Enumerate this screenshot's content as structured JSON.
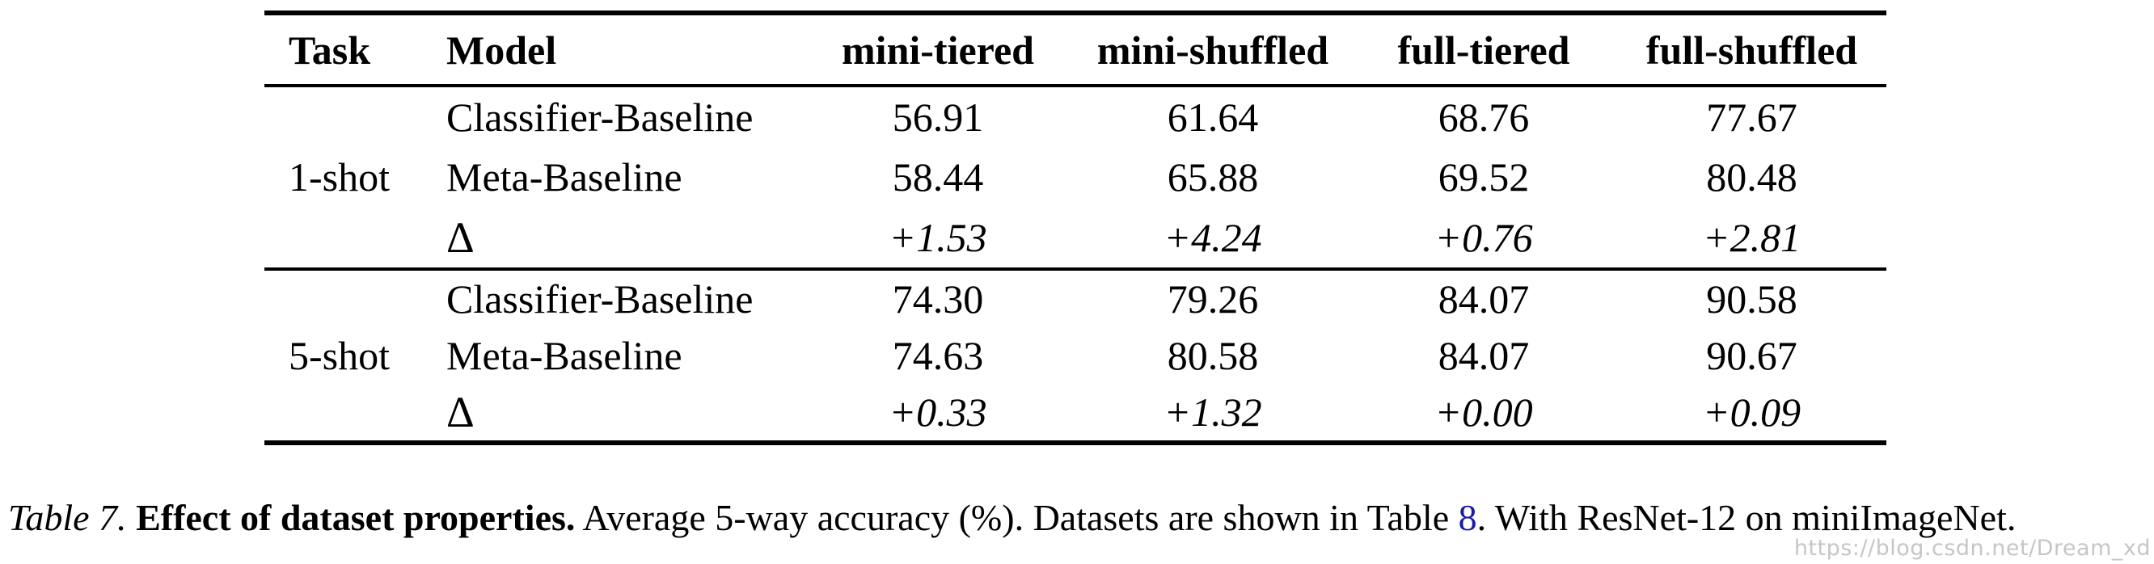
{
  "table": {
    "columns": [
      "Task",
      "Model",
      "mini-tiered",
      "mini-shuffled",
      "full-tiered",
      "full-shuffled"
    ],
    "groups": [
      {
        "task": "1-shot",
        "rows": [
          {
            "model": "Classifier-Baseline",
            "values": [
              "56.91",
              "61.64",
              "68.76",
              "77.67"
            ]
          },
          {
            "model": "Meta-Baseline",
            "values": [
              "58.44",
              "65.88",
              "69.52",
              "80.48"
            ]
          },
          {
            "model": "Δ",
            "values": [
              "+1.53",
              "+4.24",
              "+0.76",
              "+2.81"
            ]
          }
        ]
      },
      {
        "task": "5-shot",
        "rows": [
          {
            "model": "Classifier-Baseline",
            "values": [
              "74.30",
              "79.26",
              "84.07",
              "90.58"
            ]
          },
          {
            "model": "Meta-Baseline",
            "values": [
              "74.63",
              "80.58",
              "84.07",
              "90.67"
            ]
          },
          {
            "model": "Δ",
            "values": [
              "+0.33",
              "+1.32",
              "+0.00",
              "+0.09"
            ]
          }
        ]
      }
    ]
  },
  "caption": {
    "label": "Table 7.",
    "title": "Effect of dataset properties.",
    "segment1": "Average 5-way accuracy (%). Datasets are shown in Table",
    "link": "8",
    "segment2": ". With ResNet-12 on miniImageNet.",
    "link_color": "#1b1aa8"
  },
  "watermark": "https://blog.csdn.net/Dream_xd"
}
